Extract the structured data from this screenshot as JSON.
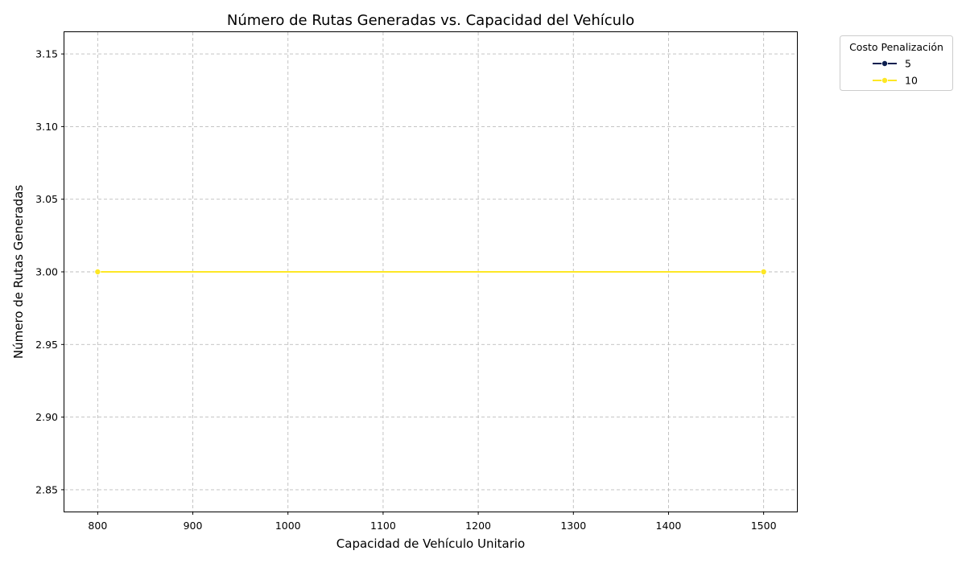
{
  "chart_data": {
    "type": "line",
    "title": "Número de Rutas Generadas vs. Capacidad del Vehículo",
    "xlabel": "Capacidad de Vehículo Unitario",
    "ylabel": "Número de Rutas Generadas",
    "xlim": [
      765,
      1535
    ],
    "ylim": [
      2.835,
      3.165
    ],
    "xticks": [
      800,
      900,
      1000,
      1100,
      1200,
      1300,
      1400,
      1500
    ],
    "xtick_labels": [
      "800",
      "900",
      "1000",
      "1100",
      "1200",
      "1300",
      "1400",
      "1500"
    ],
    "yticks": [
      2.85,
      2.9,
      2.95,
      3.0,
      3.05,
      3.1,
      3.15
    ],
    "ytick_labels": [
      "2.85",
      "2.90",
      "2.95",
      "3.00",
      "3.05",
      "3.10",
      "3.15"
    ],
    "grid": true,
    "legend": {
      "title": "Costo Penalización",
      "placement": "outside-top-right"
    },
    "series": [
      {
        "name": "5",
        "color": "#0d1f4f",
        "x": [
          800,
          1500
        ],
        "y": [
          3.0,
          3.0
        ]
      },
      {
        "name": "10",
        "color": "#fde725",
        "x": [
          800,
          1500
        ],
        "y": [
          3.0,
          3.0
        ]
      }
    ]
  }
}
